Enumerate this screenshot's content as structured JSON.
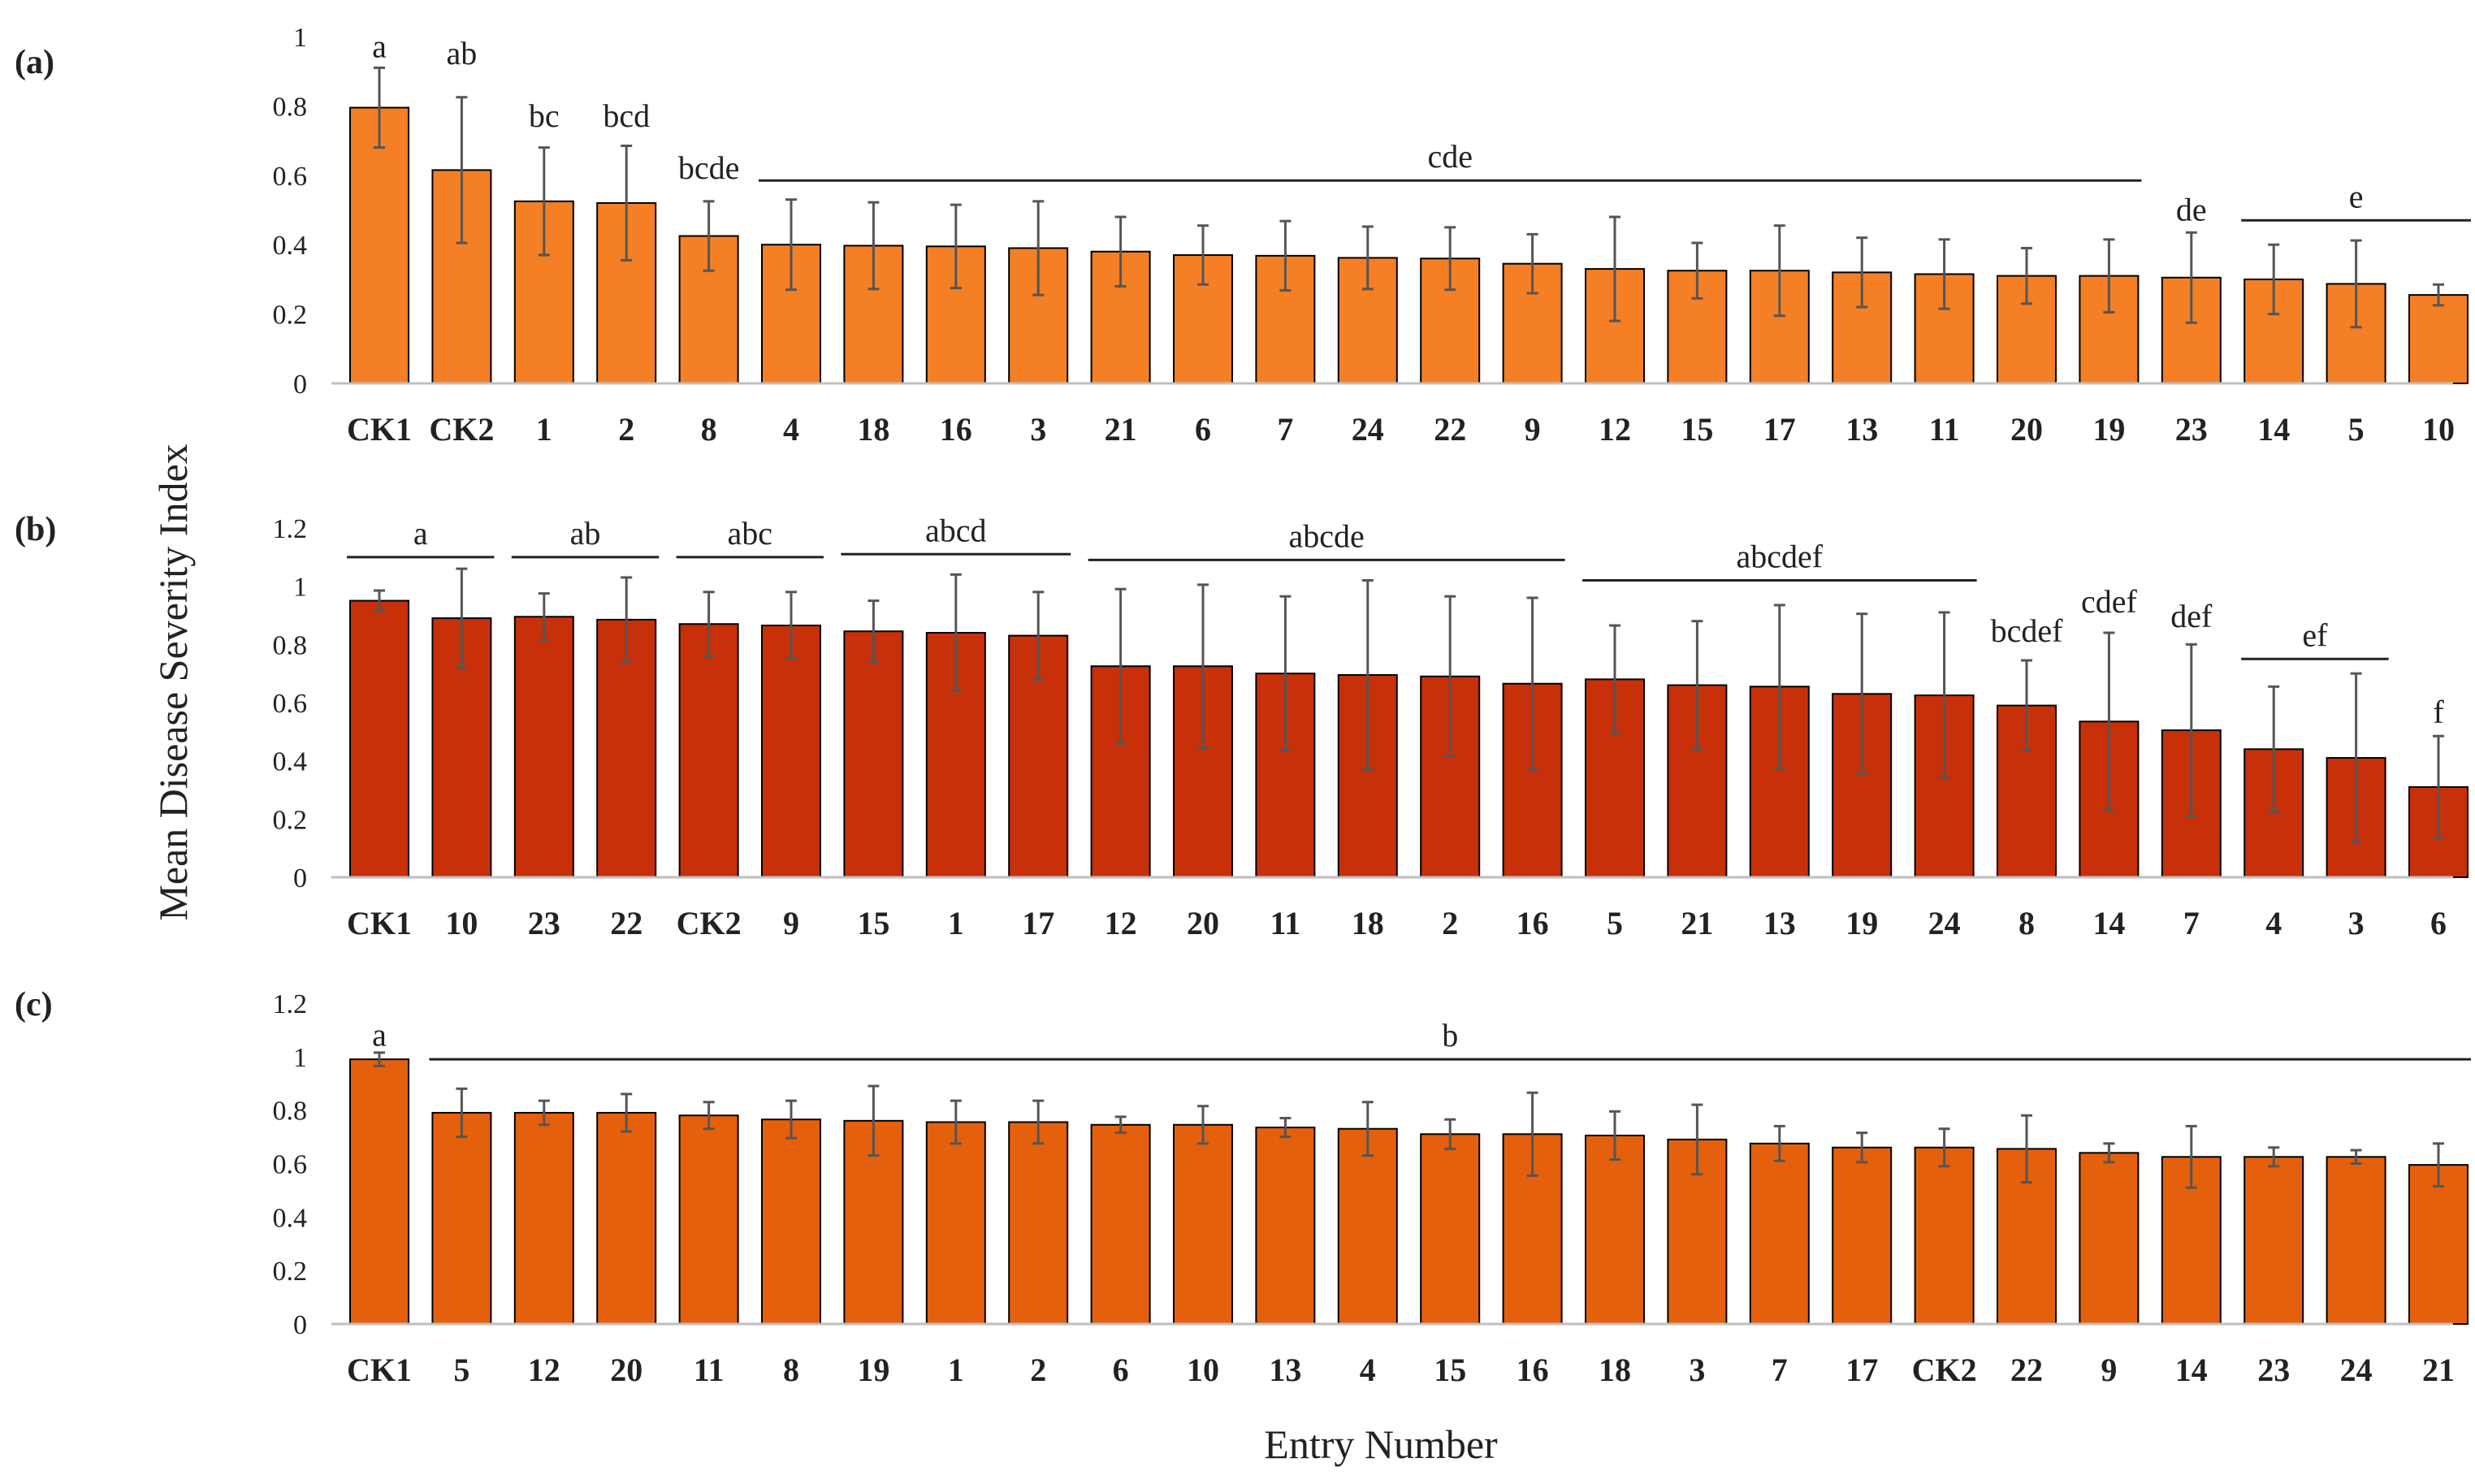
{
  "figure": {
    "ylabel": "Mean Disease Severity Index",
    "xlabel": "Entry Number"
  },
  "chart_data": [
    {
      "type": "bar",
      "panel": "(a)",
      "color": "#F47F24",
      "ylim": [
        0,
        1
      ],
      "yticks": [
        "0",
        "0.2",
        "0.4",
        "0.6",
        "0.8",
        "1"
      ],
      "ytick_values": [
        0,
        0.2,
        0.4,
        0.6,
        0.8,
        1
      ],
      "categories": [
        "CK1",
        "CK2",
        "1",
        "2",
        "8",
        "4",
        "18",
        "16",
        "3",
        "21",
        "6",
        "7",
        "24",
        "22",
        "9",
        "12",
        "15",
        "17",
        "13",
        "11",
        "20",
        "19",
        "23",
        "14",
        "5",
        "10"
      ],
      "values": [
        0.795,
        0.615,
        0.525,
        0.52,
        0.425,
        0.4,
        0.397,
        0.395,
        0.39,
        0.38,
        0.37,
        0.368,
        0.362,
        0.36,
        0.345,
        0.33,
        0.325,
        0.325,
        0.32,
        0.315,
        0.31,
        0.31,
        0.305,
        0.3,
        0.287,
        0.255
      ],
      "errors": [
        0.115,
        0.21,
        0.155,
        0.165,
        0.1,
        0.13,
        0.125,
        0.12,
        0.135,
        0.1,
        0.085,
        0.1,
        0.09,
        0.09,
        0.085,
        0.15,
        0.08,
        0.13,
        0.1,
        0.1,
        0.08,
        0.105,
        0.13,
        0.1,
        0.125,
        0.03
      ],
      "labels": [
        {
          "text": "a",
          "from": 0,
          "to": 0,
          "y": 0.94,
          "line": false
        },
        {
          "text": "ab",
          "from": 1,
          "to": 1,
          "y": 0.92,
          "line": false
        },
        {
          "text": "bc",
          "from": 2,
          "to": 2,
          "y": 0.74,
          "line": false
        },
        {
          "text": "bcd",
          "from": 3,
          "to": 3,
          "y": 0.74,
          "line": false
        },
        {
          "text": "bcde",
          "from": 4,
          "to": 4,
          "y": 0.59,
          "line": false
        },
        {
          "text": "cde",
          "from": 5,
          "to": 21,
          "y": 0.585,
          "line": true
        },
        {
          "text": "de",
          "from": 22,
          "to": 22,
          "y": 0.47,
          "line": false
        },
        {
          "text": "e",
          "from": 23,
          "to": 25,
          "y": 0.47,
          "line": true
        }
      ]
    },
    {
      "type": "bar",
      "panel": "(b)",
      "color": "#C8300A",
      "ylim": [
        0,
        1.2
      ],
      "yticks": [
        "0",
        "0.2",
        "0.4",
        "0.6",
        "0.8",
        "1",
        "1.2"
      ],
      "ytick_values": [
        0,
        0.2,
        0.4,
        0.6,
        0.8,
        1,
        1.2
      ],
      "categories": [
        "CK1",
        "10",
        "23",
        "22",
        "CK2",
        "9",
        "15",
        "1",
        "17",
        "12",
        "20",
        "11",
        "18",
        "2",
        "16",
        "5",
        "21",
        "13",
        "19",
        "24",
        "8",
        "14",
        "7",
        "4",
        "3",
        "6"
      ],
      "values": [
        0.95,
        0.89,
        0.895,
        0.885,
        0.87,
        0.865,
        0.845,
        0.84,
        0.83,
        0.725,
        0.725,
        0.7,
        0.695,
        0.69,
        0.665,
        0.68,
        0.66,
        0.655,
        0.63,
        0.625,
        0.59,
        0.535,
        0.505,
        0.44,
        0.41,
        0.31
      ],
      "errors": [
        0.035,
        0.17,
        0.08,
        0.145,
        0.11,
        0.115,
        0.105,
        0.2,
        0.15,
        0.265,
        0.28,
        0.265,
        0.325,
        0.275,
        0.295,
        0.185,
        0.22,
        0.28,
        0.275,
        0.285,
        0.155,
        0.305,
        0.295,
        0.215,
        0.29,
        0.175
      ],
      "labels": [
        {
          "text": "a",
          "from": 0,
          "to": 1,
          "y": 1.1,
          "line": true
        },
        {
          "text": "ab",
          "from": 2,
          "to": 3,
          "y": 1.1,
          "line": true
        },
        {
          "text": "abc",
          "from": 4,
          "to": 5,
          "y": 1.1,
          "line": true
        },
        {
          "text": "abcd",
          "from": 6,
          "to": 8,
          "y": 1.11,
          "line": true
        },
        {
          "text": "abcde",
          "from": 9,
          "to": 14,
          "y": 1.09,
          "line": true
        },
        {
          "text": "abcdef",
          "from": 15,
          "to": 19,
          "y": 1.02,
          "line": true
        },
        {
          "text": "bcdef",
          "from": 20,
          "to": 20,
          "y": 0.81,
          "line": false
        },
        {
          "text": "cdef",
          "from": 21,
          "to": 21,
          "y": 0.91,
          "line": false
        },
        {
          "text": "def",
          "from": 22,
          "to": 22,
          "y": 0.86,
          "line": false
        },
        {
          "text": "ef",
          "from": 23,
          "to": 24,
          "y": 0.75,
          "line": true
        },
        {
          "text": "f",
          "from": 25,
          "to": 25,
          "y": 0.53,
          "line": false
        }
      ]
    },
    {
      "type": "bar",
      "panel": "(c)",
      "color": "#E5600C",
      "ylim": [
        0,
        1.2
      ],
      "yticks": [
        "0",
        "0.2",
        "0.4",
        "0.6",
        "0.8",
        "1",
        "1.2"
      ],
      "ytick_values": [
        0,
        0.2,
        0.4,
        0.6,
        0.8,
        1,
        1.2
      ],
      "categories": [
        "CK1",
        "5",
        "12",
        "20",
        "11",
        "8",
        "19",
        "1",
        "2",
        "6",
        "10",
        "13",
        "4",
        "15",
        "16",
        "18",
        "3",
        "7",
        "17",
        "CK2",
        "22",
        "9",
        "14",
        "23",
        "24",
        "21"
      ],
      "values": [
        0.99,
        0.79,
        0.79,
        0.79,
        0.78,
        0.765,
        0.76,
        0.755,
        0.755,
        0.745,
        0.745,
        0.735,
        0.73,
        0.71,
        0.71,
        0.705,
        0.69,
        0.675,
        0.66,
        0.66,
        0.655,
        0.64,
        0.625,
        0.625,
        0.625,
        0.595
      ],
      "errors": [
        0.025,
        0.09,
        0.045,
        0.07,
        0.05,
        0.07,
        0.13,
        0.08,
        0.08,
        0.03,
        0.07,
        0.035,
        0.1,
        0.055,
        0.155,
        0.09,
        0.13,
        0.065,
        0.055,
        0.07,
        0.125,
        0.035,
        0.115,
        0.035,
        0.025,
        0.08
      ],
      "labels": [
        {
          "text": "a",
          "from": 0,
          "to": 0,
          "y": 1.04,
          "line": false
        },
        {
          "text": "b",
          "from": 1,
          "to": 25,
          "y": 0.99,
          "line": true
        }
      ]
    }
  ]
}
